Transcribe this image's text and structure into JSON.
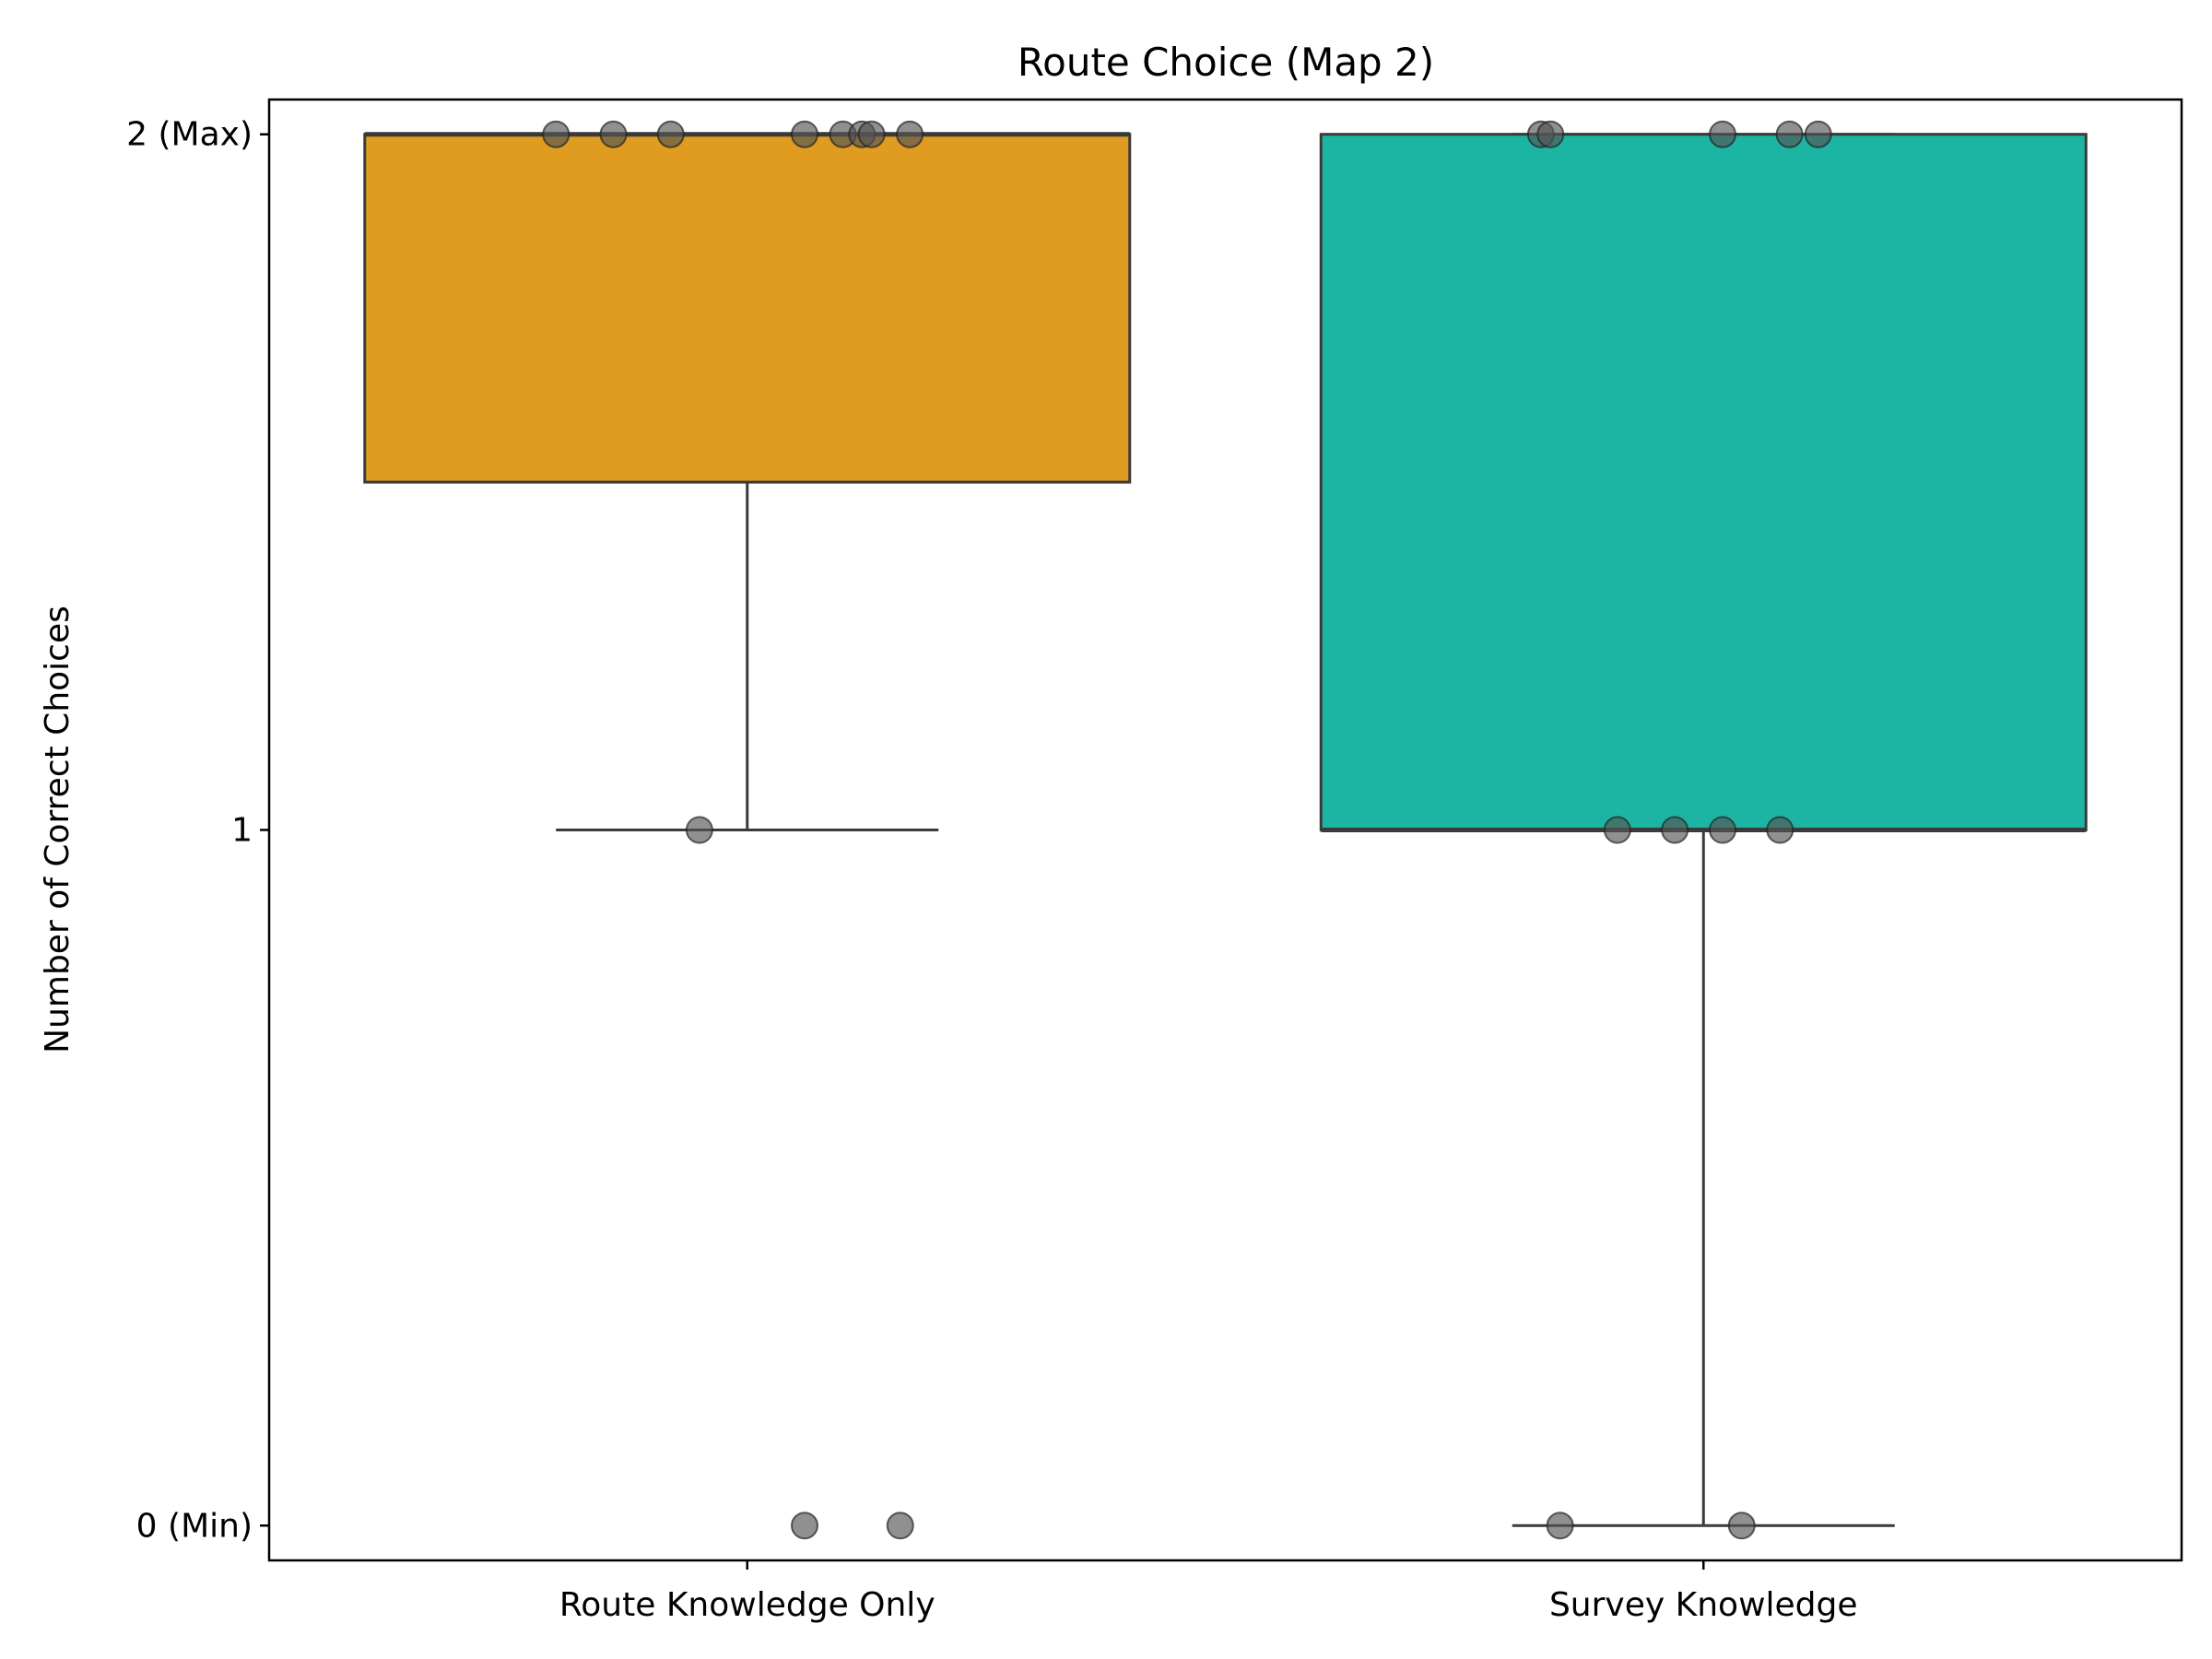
{
  "chart_data": {
    "type": "box",
    "title": "Route Choice (Map 2)",
    "xlabel": "",
    "ylabel": "Number of Correct Choices",
    "ylim": [
      -0.05,
      2.05
    ],
    "yticks": [
      {
        "value": 0,
        "label": "0 (Min)"
      },
      {
        "value": 1,
        "label": "1"
      },
      {
        "value": 2,
        "label": "2 (Max)"
      }
    ],
    "categories": [
      "Route Knowledge Only",
      "Survey Knowledge"
    ],
    "boxes": [
      {
        "category": "Route Knowledge Only",
        "color": "#e09c20",
        "whisker_low": 1,
        "q1": 1.5,
        "median": 2,
        "q3": 2,
        "whisker_high": 2
      },
      {
        "category": "Survey Knowledge",
        "color": "#1cb5a3",
        "whisker_low": 0,
        "q1": 1,
        "median": 1,
        "q3": 2,
        "whisker_high": 2
      }
    ],
    "points": [
      {
        "category": "Route Knowledge Only",
        "values": [
          2,
          2,
          2,
          2,
          2,
          2,
          2,
          2,
          1,
          0,
          0
        ],
        "jitter": [
          -0.2,
          -0.14,
          -0.08,
          0.06,
          0.1,
          0.12,
          0.13,
          0.17,
          -0.05,
          0.06,
          0.16
        ]
      },
      {
        "category": "Survey Knowledge",
        "values": [
          2,
          2,
          2,
          2,
          2,
          1,
          1,
          1,
          1,
          0,
          0
        ],
        "jitter": [
          -0.17,
          -0.16,
          0.02,
          0.09,
          0.12,
          -0.09,
          -0.03,
          0.02,
          0.08,
          -0.15,
          0.04
        ]
      }
    ],
    "point_color": "#555555",
    "line_color": "#3a3a3a",
    "grid": false,
    "legend": false
  }
}
